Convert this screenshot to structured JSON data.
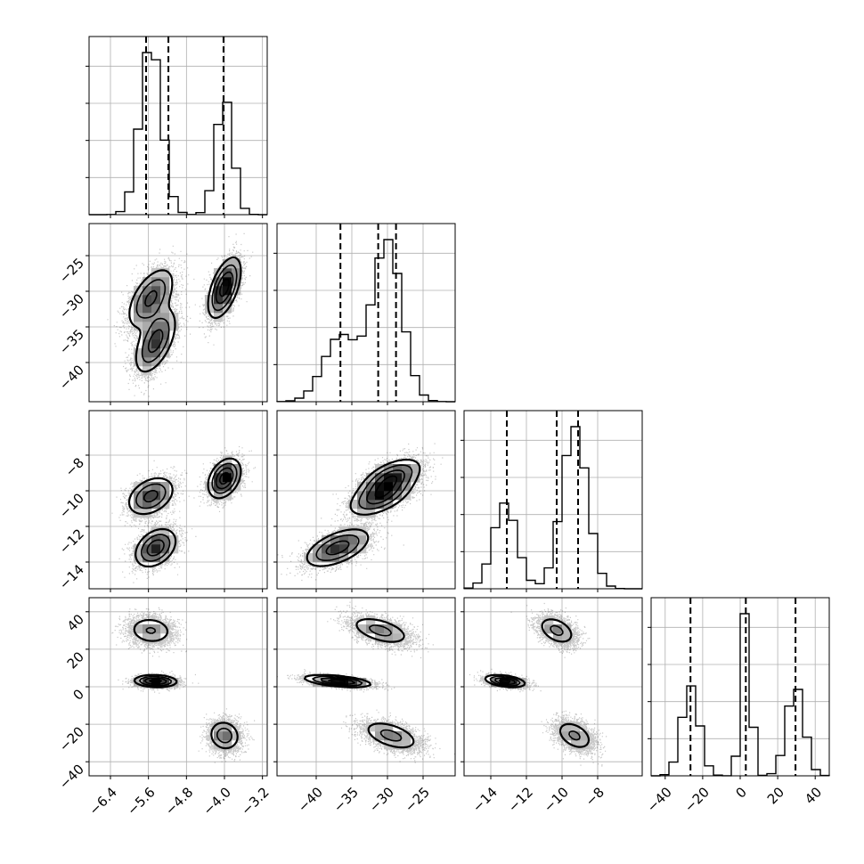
{
  "chart_data": {
    "type": "corner",
    "grid": true,
    "parameters": [
      {
        "range": [
          -6.85,
          -3.1
        ],
        "ticks": [
          -6.4,
          -5.6,
          -4.8,
          -4.0,
          -3.2
        ],
        "tick_labels": [
          "−6.4",
          "−5.6",
          "−4.8",
          "−4.0",
          "−3.2"
        ],
        "quantiles": [
          -5.65,
          -5.18,
          -4.02
        ],
        "components": [
          {
            "mean": -5.55,
            "sd": 0.22,
            "weight": 0.65
          },
          {
            "mean": -4.0,
            "sd": 0.17,
            "weight": 0.35
          }
        ]
      },
      {
        "range": [
          -45.5,
          -20.5
        ],
        "ticks": [
          -40,
          -35,
          -30,
          -25
        ],
        "tick_labels": [
          "−40",
          "−35",
          "−30",
          "−25"
        ],
        "quantiles": [
          -36.6,
          -31.3,
          -28.8
        ],
        "components": [
          {
            "mean": -36.5,
            "sd": 2.4,
            "weight": 0.33
          },
          {
            "mean": -30.0,
            "sd": 2.0,
            "weight": 0.67
          }
        ]
      },
      {
        "range": [
          -15.5,
          -5.5
        ],
        "ticks": [
          -14,
          -12,
          -10,
          -8
        ],
        "tick_labels": [
          "−14",
          "−12",
          "−10",
          "−8"
        ],
        "quantiles": [
          -13.1,
          -10.3,
          -9.1
        ],
        "components": [
          {
            "mean": -13.2,
            "sd": 0.65,
            "weight": 0.33
          },
          {
            "mean": -9.3,
            "sd": 0.7,
            "weight": 0.67
          }
        ]
      },
      {
        "range": [
          -47.5,
          47.5
        ],
        "ticks": [
          -40,
          -20,
          0,
          20,
          40
        ],
        "tick_labels": [
          "−40",
          "−20",
          "0",
          "20",
          "40"
        ],
        "quantiles": [
          -26.5,
          3.0,
          29.5
        ],
        "components": [
          {
            "mean": -26.5,
            "sd": 4.5,
            "weight": 0.33
          },
          {
            "mean": 3.0,
            "sd": 2.2,
            "weight": 0.34
          },
          {
            "mean": 29.5,
            "sd": 4.5,
            "weight": 0.33
          }
        ]
      }
    ],
    "clusters": [
      {
        "means": [
          -5.55,
          -31.0,
          -10.3,
          30.0
        ],
        "sds": [
          0.25,
          2.2,
          0.55,
          4.0
        ],
        "weight": 0.33
      },
      {
        "means": [
          -5.45,
          -37.0,
          -13.2,
          3.0
        ],
        "sds": [
          0.22,
          2.3,
          0.55,
          1.6
        ],
        "weight": 0.34
      },
      {
        "means": [
          -4.0,
          -29.5,
          -9.3,
          -26.0
        ],
        "sds": [
          0.17,
          2.1,
          0.55,
          4.2
        ],
        "weight": 0.33
      }
    ],
    "cluster_tilt": [
      [
        0,
        0.55,
        0.35,
        -0.1
      ],
      [
        0.55,
        0,
        0.55,
        -0.5
      ],
      [
        0.35,
        0.55,
        0,
        -0.4
      ],
      [
        -0.1,
        -0.5,
        -0.4,
        0
      ]
    ]
  }
}
